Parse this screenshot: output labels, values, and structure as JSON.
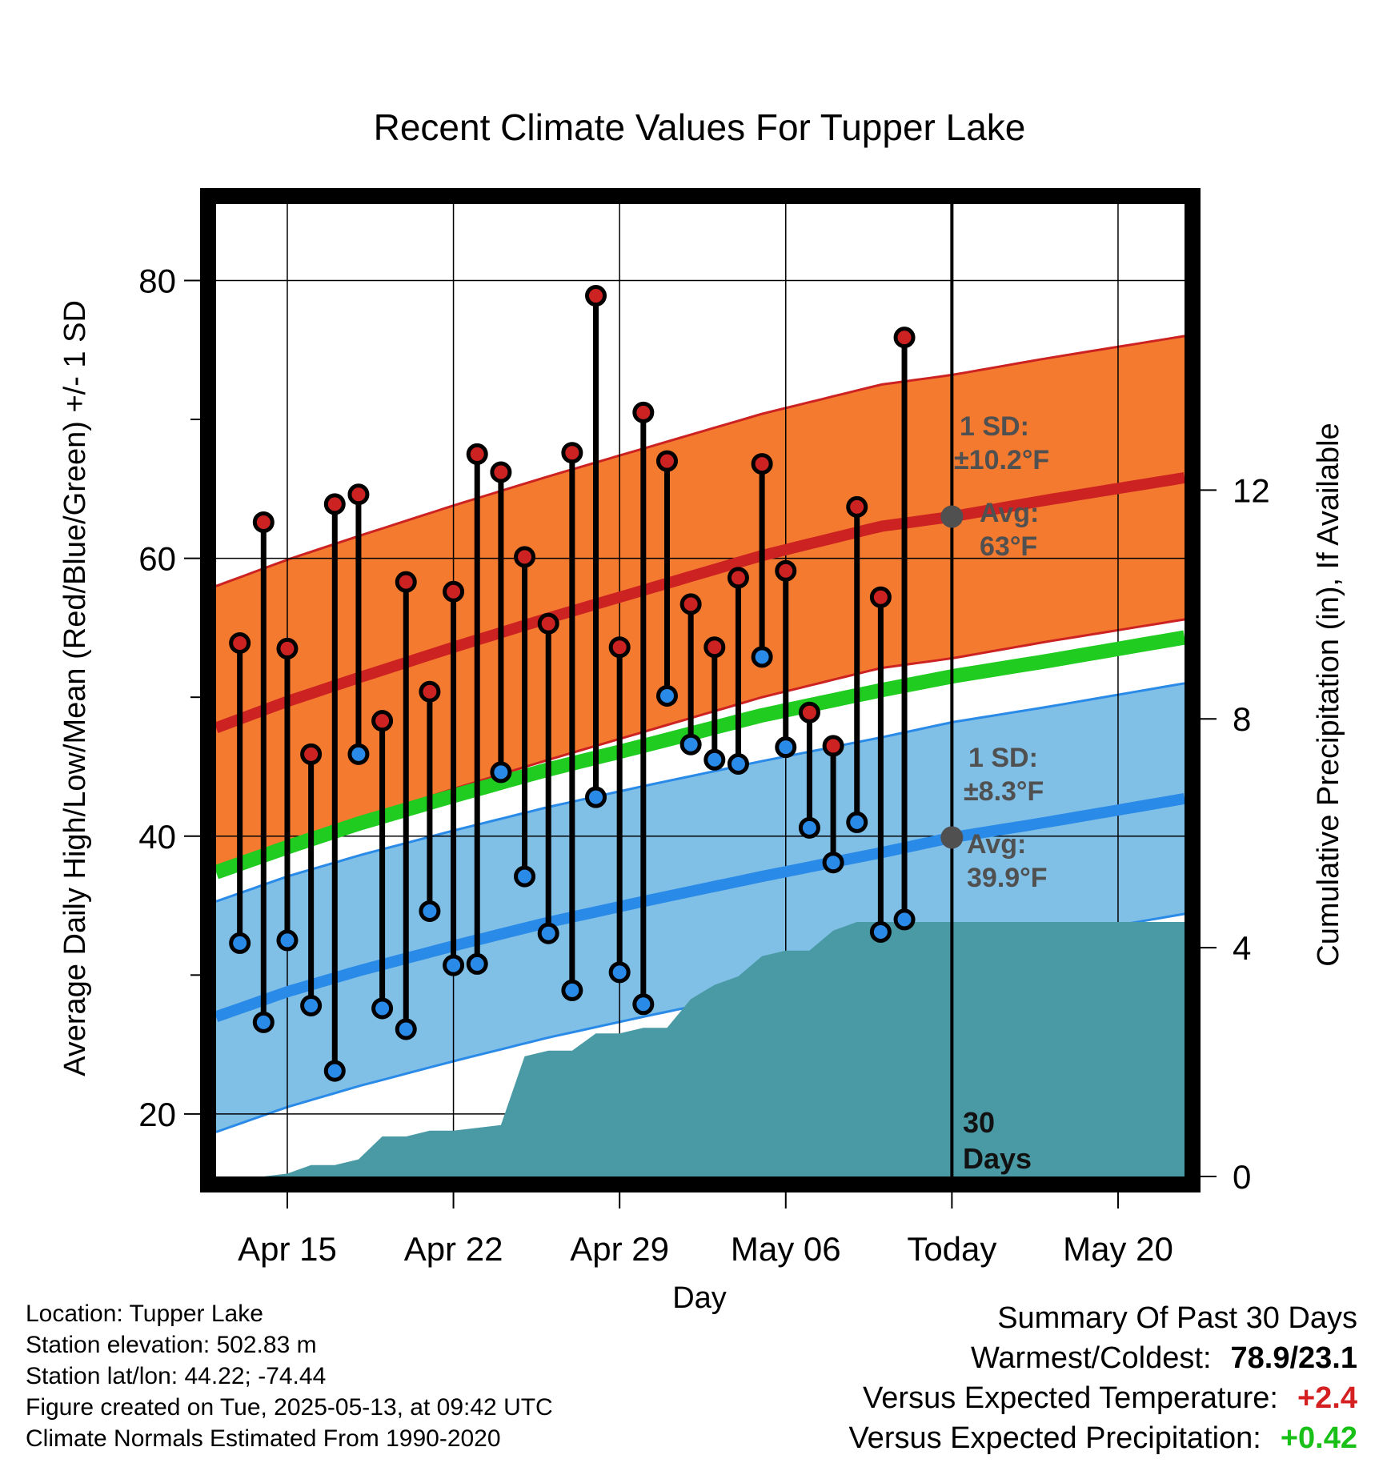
{
  "title": "Recent Climate Values For Tupper Lake",
  "chart_data": {
    "type": "line",
    "title": "Recent Climate Values For Tupper Lake",
    "xlabel": "Day",
    "ylabel": "Average Daily High/Low/Mean (Red/Blue/Green) +/- 1 SD",
    "y2label": "Cumulative Precipitation (in), If Available",
    "x_tick_labels": [
      "Apr 15",
      "Apr 22",
      "Apr 29",
      "May 06",
      "Today",
      "May 20"
    ],
    "y_ticks": [
      20,
      40,
      60,
      80
    ],
    "y2_ticks": [
      0,
      4,
      8,
      12
    ],
    "xlim_days": [
      0,
      40.8
    ],
    "ylim": [
      15.5,
      85.5
    ],
    "y2lim": [
      0,
      17
    ],
    "x_tick_days": [
      3,
      10,
      17,
      24,
      31,
      38
    ],
    "today_day": 31,
    "daily_days": [
      1,
      2,
      3,
      4,
      5,
      6,
      7,
      8,
      9,
      10,
      11,
      12,
      13,
      14,
      15,
      16,
      17,
      18,
      19,
      20,
      21,
      22,
      23,
      24,
      25,
      26,
      27,
      28,
      29,
      30
    ],
    "daily_high": [
      53.9,
      62.6,
      53.5,
      45.9,
      63.9,
      64.6,
      48.3,
      58.3,
      50.4,
      57.6,
      67.5,
      66.2,
      60.1,
      55.3,
      67.6,
      78.9,
      53.6,
      70.5,
      67.0,
      56.7,
      53.6,
      58.6,
      66.8,
      59.1,
      48.9,
      46.5,
      63.7,
      57.2,
      75.9,
      null
    ],
    "daily_low": [
      32.3,
      26.6,
      32.5,
      27.8,
      23.1,
      45.9,
      27.6,
      26.1,
      34.6,
      30.7,
      30.8,
      44.6,
      37.1,
      33.0,
      28.9,
      42.8,
      30.2,
      27.9,
      50.1,
      46.6,
      45.5,
      45.2,
      52.9,
      46.4,
      40.6,
      38.1,
      41.0,
      33.1,
      34.0,
      null
    ],
    "normal_days": [
      0,
      3,
      6,
      10,
      14,
      18,
      23,
      28,
      31,
      35,
      40.8
    ],
    "normal_high": [
      47.8,
      49.7,
      51.4,
      53.6,
      55.7,
      57.7,
      60.2,
      62.3,
      63.0,
      64.2,
      65.8
    ],
    "normal_low": [
      27.0,
      28.8,
      30.3,
      32.1,
      33.8,
      35.3,
      37.1,
      38.8,
      39.9,
      41.0,
      42.7
    ],
    "normal_mean": [
      37.4,
      39.2,
      40.9,
      42.9,
      44.8,
      46.5,
      48.7,
      50.5,
      51.5,
      52.6,
      54.3
    ],
    "sd_high": 10.2,
    "sd_low": 8.3,
    "precip_days": [
      0,
      2,
      3,
      4,
      5,
      6,
      7,
      8,
      9,
      10,
      11,
      12,
      13,
      14,
      15,
      16,
      17,
      18,
      19,
      20,
      21,
      22,
      23,
      24,
      25,
      26,
      27,
      28,
      29,
      30,
      31,
      40.8
    ],
    "precip_cum": [
      0,
      0,
      0.05,
      0.2,
      0.2,
      0.3,
      0.7,
      0.7,
      0.8,
      0.8,
      0.85,
      0.9,
      2.1,
      2.2,
      2.2,
      2.5,
      2.5,
      2.6,
      2.6,
      3.1,
      3.35,
      3.5,
      3.85,
      3.95,
      3.95,
      4.3,
      4.45,
      4.45,
      4.45,
      4.45,
      4.45,
      4.45
    ],
    "annotations": {
      "high_sd_label": "1 SD:",
      "high_sd_value": "±10.2°F",
      "high_avg_label": "Avg:",
      "high_avg_value": "63°F",
      "low_sd_label": "1 SD:",
      "low_sd_value": "±8.3°F",
      "low_avg_label": "Avg:",
      "low_avg_value": "39.9°F",
      "window_count": "30",
      "window_unit": "Days"
    },
    "colors": {
      "high": "#cc2222",
      "high_band": "#f47a30",
      "low": "#2a8ae8",
      "low_band": "#80bfe6",
      "mean": "#1fcc1f",
      "precip": "#4a9aa5",
      "avg_marker": "#505050"
    },
    "grid": true
  },
  "info": {
    "location": "Location: Tupper Lake",
    "elevation": "Station elevation: 502.83 m",
    "latlon": "Station lat/lon: 44.22; -74.44",
    "created": "Figure created on Tue, 2025-05-13, at 09:42 UTC",
    "normals": "Climate Normals Estimated From 1990-2020"
  },
  "summary": {
    "heading": "Summary Of Past 30 Days",
    "warm_cold_label": "Warmest/Coldest:",
    "warm_cold_value": "78.9/23.1",
    "temp_label": "Versus Expected Temperature:",
    "temp_value": "+2.4",
    "precip_label": "Versus Expected Precipitation:",
    "precip_value": "+0.42",
    "temp_color": "#d42020",
    "precip_color": "#18c018"
  }
}
